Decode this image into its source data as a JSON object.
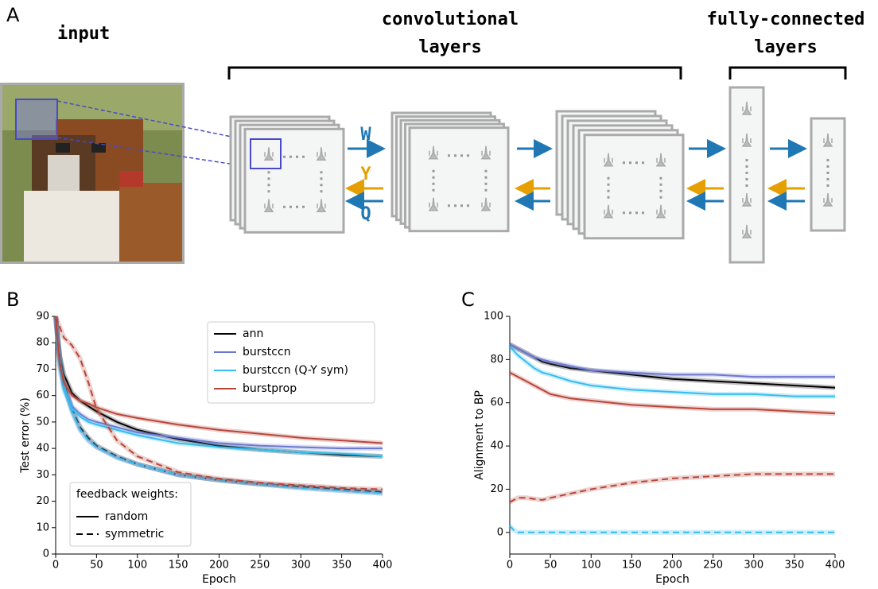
{
  "figure": {
    "panel_label": "A",
    "input_label": "input",
    "conv_label": [
      "convolutional",
      "layers"
    ],
    "fc_label": [
      "fully-connected",
      "layers"
    ],
    "arrow_labels": {
      "forward": "W",
      "feedback_y": "Y",
      "feedback_q": "Q"
    }
  },
  "chart_data": [
    {
      "type": "line",
      "label": "B",
      "xlabel": "Epoch",
      "ylabel": "Test error (%)",
      "x": [
        0,
        5,
        10,
        20,
        30,
        40,
        50,
        75,
        100,
        150,
        200,
        250,
        300,
        350,
        400
      ],
      "xlim": [
        0,
        400
      ],
      "xticks": [
        0,
        50,
        100,
        150,
        200,
        250,
        300,
        350,
        400
      ],
      "ylim": [
        0,
        90
      ],
      "yticks": [
        0,
        10,
        20,
        30,
        40,
        50,
        60,
        70,
        80,
        90
      ],
      "legend": "upper right",
      "style_legend": {
        "title": "feedback weights:",
        "solid": "random",
        "dashed": "symmetric",
        "location": "lower left"
      },
      "series": [
        {
          "name": "ann",
          "color": "#000000",
          "values": [
            90,
            75,
            68,
            61,
            58,
            56,
            54,
            50,
            47,
            43.5,
            41,
            39.5,
            38.5,
            37.5,
            37
          ],
          "symmetric_values": [
            90,
            75,
            65,
            55,
            48,
            44,
            41,
            37,
            34,
            30,
            28,
            26.5,
            25.5,
            24.5,
            23.5
          ]
        },
        {
          "name": "burstccn",
          "color": "#6b78d0",
          "values": [
            90,
            72,
            63,
            56,
            53,
            51,
            50,
            48,
            46,
            44,
            42,
            41,
            40.5,
            40,
            40
          ],
          "symmetric_values": [
            90,
            74,
            64,
            54,
            47,
            43,
            40.5,
            36.5,
            34,
            30,
            28,
            26.5,
            25,
            24,
            23
          ]
        },
        {
          "name": "burstccn (Q-Y sym)",
          "color": "#35bdee",
          "values": [
            90,
            70,
            62,
            55,
            52,
            50,
            49,
            47,
            45,
            42,
            40.5,
            39.5,
            38.5,
            38,
            37
          ],
          "symmetric_values": [
            90,
            74,
            64,
            54,
            47,
            43,
            40.5,
            36.5,
            34,
            30,
            28,
            26.5,
            25,
            24,
            23
          ]
        },
        {
          "name": "burstprop",
          "color": "#b8463b",
          "values": [
            90,
            72,
            65,
            60,
            58,
            57,
            55.5,
            53,
            51.5,
            49,
            47,
            45.5,
            44,
            43,
            42
          ],
          "symmetric_values": [
            90,
            86,
            82,
            79,
            74,
            65,
            55,
            43,
            37,
            31,
            28.5,
            27,
            26,
            25,
            24.5
          ]
        }
      ]
    },
    {
      "type": "line",
      "label": "C",
      "xlabel": "Epoch",
      "ylabel": "Alignment to BP",
      "x": [
        0,
        5,
        10,
        20,
        30,
        40,
        50,
        75,
        100,
        150,
        200,
        250,
        300,
        350,
        400
      ],
      "xlim": [
        0,
        400
      ],
      "xticks": [
        0,
        50,
        100,
        150,
        200,
        250,
        300,
        350,
        400
      ],
      "ylim": [
        -10,
        100
      ],
      "yticks": [
        0,
        20,
        40,
        60,
        80,
        100
      ],
      "series": [
        {
          "color": "#000000",
          "values": [
            87,
            86,
            85,
            83,
            81,
            79,
            78,
            76,
            75,
            73,
            71,
            70,
            69,
            68,
            67
          ]
        },
        {
          "color": "#6b78d0",
          "values": [
            87,
            86,
            85,
            83,
            81,
            80,
            79,
            77,
            75,
            74,
            73,
            73,
            72,
            72,
            72
          ]
        },
        {
          "color": "#35bdee",
          "values": [
            86,
            84,
            82,
            79,
            76,
            74,
            73,
            70,
            68,
            66,
            65,
            64,
            64,
            63,
            63
          ],
          "symmetric_values": [
            3,
            1,
            0,
            0,
            0,
            0,
            0,
            0,
            0,
            0,
            0,
            0,
            0,
            0,
            0
          ]
        },
        {
          "color": "#b8463b",
          "values": [
            74,
            73,
            72,
            70,
            68,
            66,
            64,
            62,
            61,
            59,
            58,
            57,
            57,
            56,
            55
          ],
          "symmetric_values": [
            14,
            15,
            16,
            16,
            15.5,
            15,
            16,
            18,
            20,
            23,
            25,
            26,
            27,
            27,
            27
          ]
        }
      ]
    }
  ]
}
